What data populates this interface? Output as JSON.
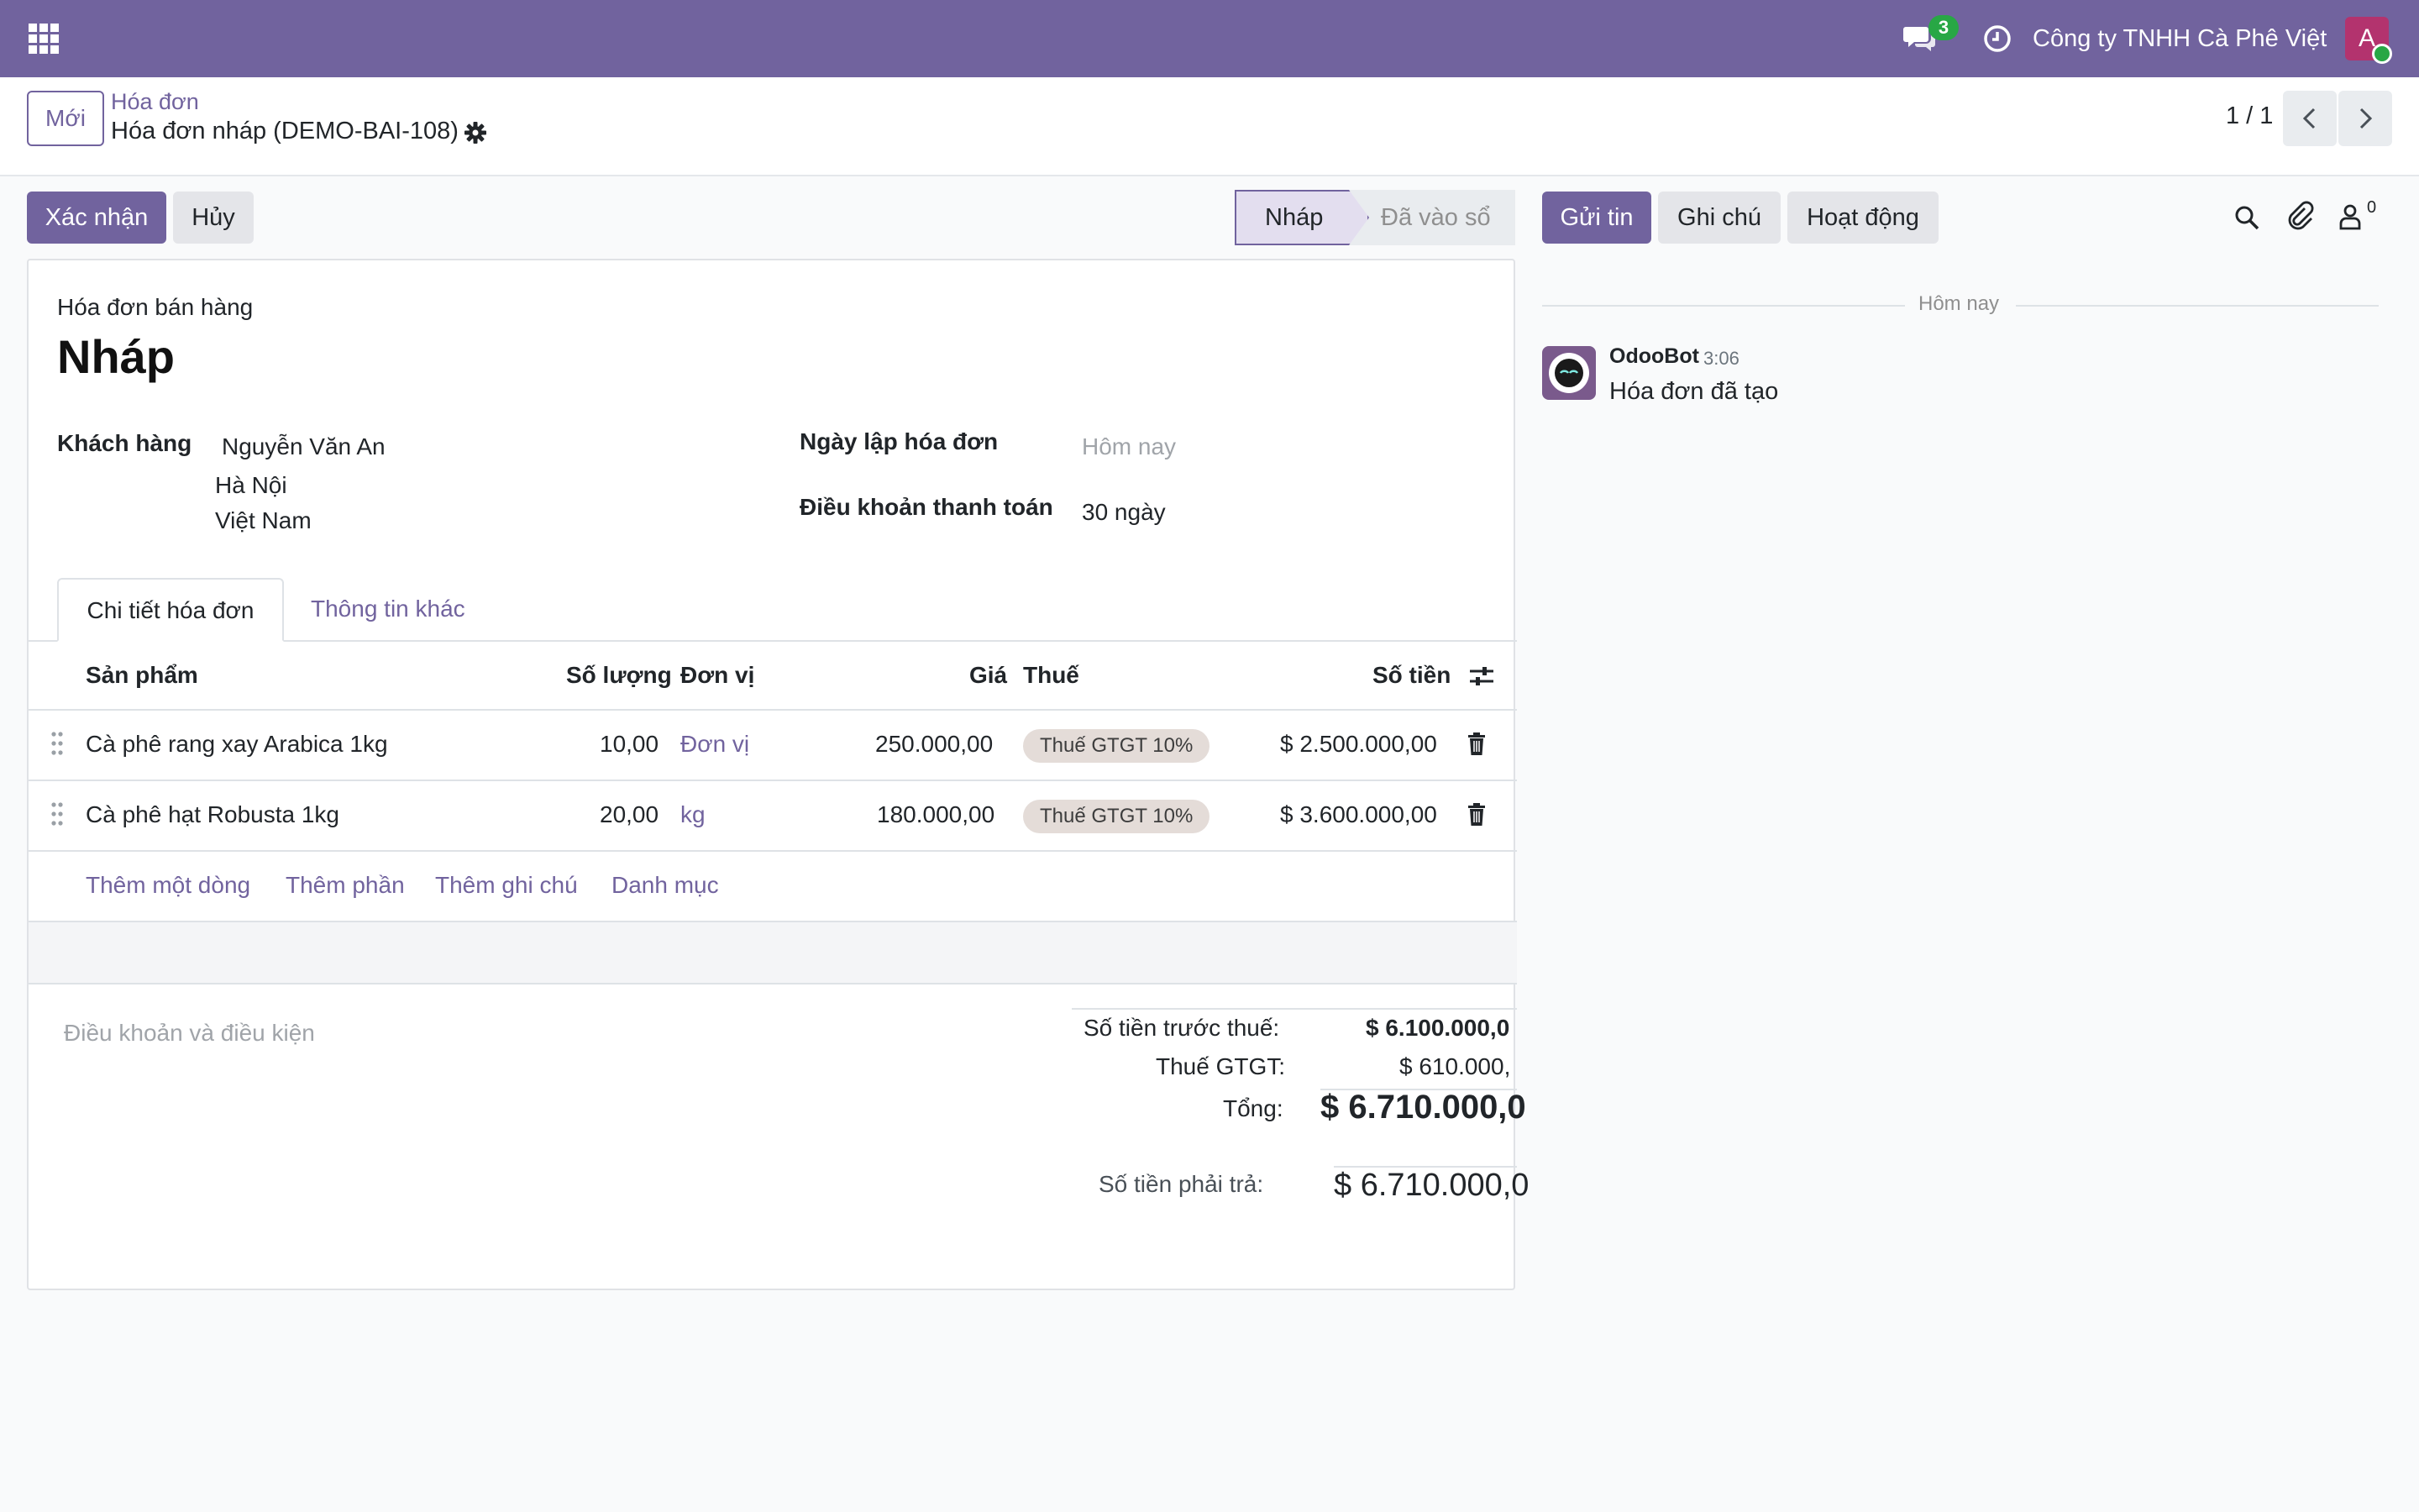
{
  "navbar": {
    "chat_count": "3",
    "company": "Công ty TNHH Cà Phê Việt",
    "avatar_letter": "A"
  },
  "control": {
    "new_label": "Mới",
    "breadcrumb": "Hóa đơn",
    "title": "Hóa đơn nháp (DEMO-BAI-108)",
    "pager": "1 / 1"
  },
  "actions": {
    "confirm": "Xác nhận",
    "cancel": "Hủy"
  },
  "status": {
    "current": "Nháp",
    "next": "Đã vào sổ"
  },
  "form": {
    "doc_type": "Hóa đơn bán hàng",
    "doc_name": "Nháp",
    "customer_label": "Khách hàng",
    "customer_name": "Nguyễn Văn An",
    "customer_city": "Hà Nội",
    "customer_country": "Việt Nam",
    "date_label": "Ngày lập hóa đơn",
    "date_placeholder": "Hôm nay",
    "terms_label": "Điều khoản thanh toán",
    "terms_value": "30 ngày"
  },
  "tabs": [
    "Chi tiết hóa đơn",
    "Thông tin khác"
  ],
  "table": {
    "headers": {
      "product": "Sản phẩm",
      "qty": "Số lượng",
      "uom": "Đơn vị",
      "price": "Giá",
      "tax": "Thuế",
      "amount": "Số tiền"
    },
    "rows": [
      {
        "product": "Cà phê rang xay Arabica 1kg",
        "qty": "10,00",
        "uom": "Đơn vị",
        "price": "250.000,00",
        "tax": "Thuế GTGT 10%",
        "amount": "$ 2.500.000,00"
      },
      {
        "product": "Cà phê hạt Robusta 1kg",
        "qty": "20,00",
        "uom": "kg",
        "price": "180.000,00",
        "tax": "Thuế GTGT 10%",
        "amount": "$ 3.600.000,00"
      }
    ],
    "add_links": [
      "Thêm một dòng",
      "Thêm phần",
      "Thêm ghi chú",
      "Danh mục"
    ]
  },
  "terms_placeholder": "Điều khoản và điều kiện",
  "totals": {
    "untaxed_label": "Số tiền trước thuế:",
    "untaxed_value": "$ 6.100.000,0",
    "tax_label": "Thuế GTGT:",
    "tax_value": "$ 610.000,",
    "total_label": "Tổng:",
    "total_value": "$ 6.710.000,0",
    "due_label": "Số tiền phải trả:",
    "due_value": "$ 6.710.000,0"
  },
  "chatter": {
    "send": "Gửi tin",
    "note": "Ghi chú",
    "activity": "Hoạt động",
    "follower_count": "0",
    "date_sep": "Hôm nay",
    "author": "OdooBot",
    "time": "3:06",
    "message": "Hóa đơn đã tạo"
  },
  "colors": {
    "brand": "#71639e",
    "badge_green": "#28a745",
    "tax_badge": "#e4dcd8"
  }
}
